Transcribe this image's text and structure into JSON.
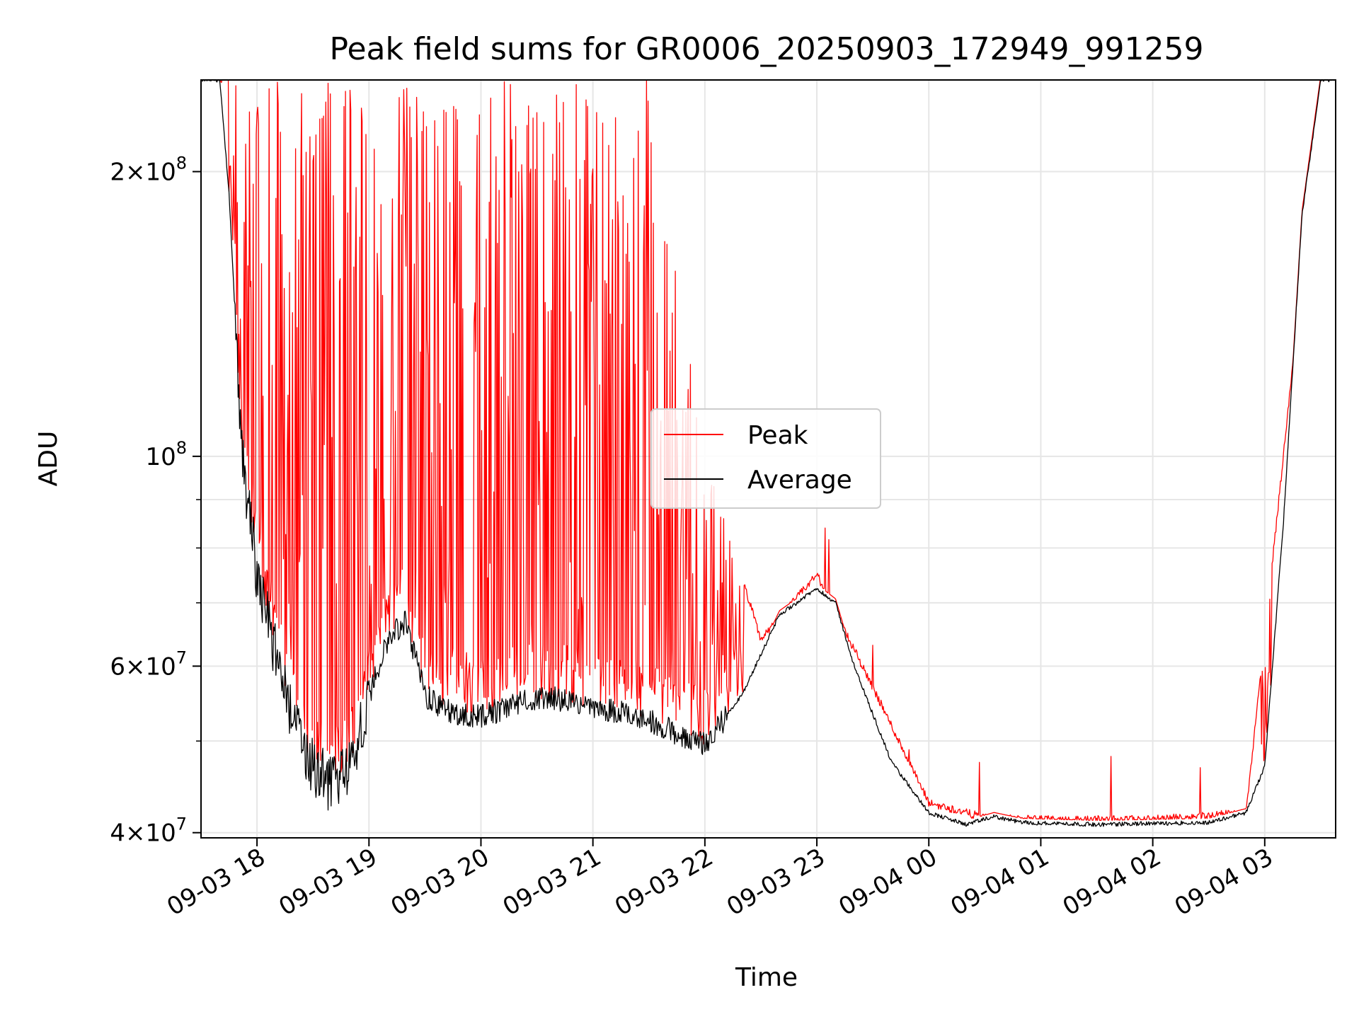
{
  "chart_data": {
    "type": "line",
    "title": "Peak field sums for GR0006_20250903_172949_991259",
    "xlabel": "Time",
    "ylabel": "ADU",
    "yscale": "log",
    "grid": true,
    "legend_position": "center",
    "x_ticks": [
      "09-03 18",
      "09-03 19",
      "09-03 20",
      "09-03 21",
      "09-03 22",
      "09-03 23",
      "09-04 00",
      "09-04 01",
      "09-04 02",
      "09-04 03"
    ],
    "x_range": [
      "2025-09-03 17:30",
      "2025-09-04 03:38"
    ],
    "y_ticks": [
      {
        "value": 40000000,
        "mantissa": "4",
        "exp": "7"
      },
      {
        "value": 60000000,
        "mantissa": "6",
        "exp": "7"
      },
      {
        "value": 100000000,
        "mantissa": "",
        "exp": "8"
      },
      {
        "value": 200000000,
        "mantissa": "2",
        "exp": "8"
      }
    ],
    "ylim": [
      39500000,
      250000000
    ],
    "series": [
      {
        "name": "Peak",
        "color": "#ff0000",
        "x": [
          "2025-09-03 17:30",
          "2025-09-03 17:40",
          "2025-09-03 17:50",
          "2025-09-03 18:00",
          "2025-09-03 18:20",
          "2025-09-03 18:40",
          "2025-09-03 19:00",
          "2025-09-03 19:20",
          "2025-09-03 19:30",
          "2025-09-03 20:00",
          "2025-09-03 20:30",
          "2025-09-03 21:00",
          "2025-09-03 21:30",
          "2025-09-03 22:00",
          "2025-09-03 22:30",
          "2025-09-03 23:00",
          "2025-09-03 23:30",
          "2025-09-04 00:00",
          "2025-09-04 00:30",
          "2025-09-04 01:00",
          "2025-09-04 02:00",
          "2025-09-04 02:50",
          "2025-09-04 03:10",
          "2025-09-04 03:30"
        ],
        "values": [
          250000000,
          250000000,
          250000000,
          250000000,
          250000000,
          250000000,
          250000000,
          250000000,
          250000000,
          250000000,
          250000000,
          250000000,
          250000000,
          100000000,
          64000000,
          75000000,
          57000000,
          43000000,
          41500000,
          41300000,
          41300000,
          42000000,
          100000000,
          250000000
        ]
      },
      {
        "name": "Average",
        "color": "#000000",
        "x": [
          "2025-09-03 17:30",
          "2025-09-03 17:40",
          "2025-09-03 17:45",
          "2025-09-03 17:52",
          "2025-09-03 18:00",
          "2025-09-03 18:10",
          "2025-09-03 18:20",
          "2025-09-03 18:30",
          "2025-09-03 18:40",
          "2025-09-03 18:50",
          "2025-09-03 19:00",
          "2025-09-03 19:10",
          "2025-09-03 19:20",
          "2025-09-03 19:30",
          "2025-09-03 19:40",
          "2025-09-03 20:00",
          "2025-09-03 20:20",
          "2025-09-03 20:40",
          "2025-09-03 21:00",
          "2025-09-03 21:20",
          "2025-09-03 21:40",
          "2025-09-03 22:00",
          "2025-09-03 22:20",
          "2025-09-03 22:40",
          "2025-09-03 23:00",
          "2025-09-03 23:10",
          "2025-09-03 23:20",
          "2025-09-03 23:40",
          "2025-09-04 00:00",
          "2025-09-04 00:20",
          "2025-09-04 00:35",
          "2025-09-04 00:50",
          "2025-09-04 01:30",
          "2025-09-04 02:30",
          "2025-09-04 02:50",
          "2025-09-04 03:00",
          "2025-09-04 03:10",
          "2025-09-04 03:20",
          "2025-09-04 03:30"
        ],
        "values": [
          250000000,
          250000000,
          190000000,
          100000000,
          75000000,
          62000000,
          52000000,
          47000000,
          45000000,
          47000000,
          56000000,
          64000000,
          67000000,
          56000000,
          54000000,
          53000000,
          55000000,
          55500000,
          54000000,
          53500000,
          51500000,
          49500000,
          56000000,
          68000000,
          72500000,
          70000000,
          60000000,
          47500000,
          42000000,
          40800000,
          41600000,
          41000000,
          40800000,
          41000000,
          42000000,
          47000000,
          85000000,
          180000000,
          250000000
        ]
      }
    ]
  }
}
